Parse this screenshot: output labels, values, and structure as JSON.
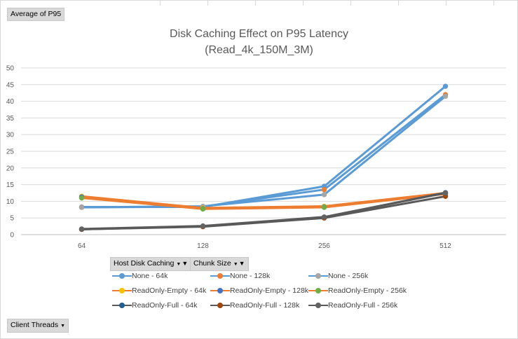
{
  "header": {
    "value_field": "Average of P95"
  },
  "pivot_buttons": {
    "legend_fields": [
      "Host Disk Caching",
      "Chunk Size"
    ],
    "axis_field": "Client Threads"
  },
  "chart_data": {
    "type": "line",
    "title": "Disk Caching Effect on P95 Latency",
    "subtitle": "(Read_4k_150M_3M)",
    "xlabel": "",
    "ylabel": "",
    "categories": [
      "64",
      "128",
      "256",
      "512"
    ],
    "ylim": [
      0,
      50
    ],
    "yticks": [
      0,
      5,
      10,
      15,
      20,
      25,
      30,
      35,
      40,
      45,
      50
    ],
    "grid": true,
    "legend_position": "bottom",
    "series": [
      {
        "name": "None - 64k",
        "color": "#5b9bd5",
        "values": [
          8.3,
          8.3,
          14.5,
          44.5
        ]
      },
      {
        "name": "None - 128k",
        "color": "#5b9bd5",
        "values": [
          8.2,
          8.4,
          13.5,
          42.0
        ]
      },
      {
        "name": "None - 256k",
        "color": "#5b9bd5",
        "values": [
          8.2,
          8.5,
          12.0,
          41.5
        ]
      },
      {
        "name": "ReadOnly-Empty - 64k",
        "color": "#ed7d31",
        "values": [
          11.5,
          8.0,
          8.5,
          12.5
        ]
      },
      {
        "name": "ReadOnly-Empty - 128k",
        "color": "#ed7d31",
        "values": [
          11.3,
          7.8,
          8.3,
          12.3
        ]
      },
      {
        "name": "ReadOnly-Empty - 256k",
        "color": "#ed7d31",
        "values": [
          11.0,
          7.7,
          8.2,
          12.2
        ]
      },
      {
        "name": "ReadOnly-Full - 64k",
        "color": "#595959",
        "values": [
          1.6,
          2.5,
          5.2,
          12.6
        ]
      },
      {
        "name": "ReadOnly-Full - 128k",
        "color": "#595959",
        "values": [
          1.6,
          2.4,
          5.0,
          11.5
        ]
      },
      {
        "name": "ReadOnly-Full - 256k",
        "color": "#595959",
        "values": [
          1.7,
          2.6,
          5.3,
          12.5
        ]
      }
    ],
    "marker_colors": [
      "#5b9bd5",
      "#ed7d31",
      "#a5a5a5",
      "#ffc000",
      "#4472c4",
      "#70ad47",
      "#255e91",
      "#9e480e",
      "#636363"
    ]
  }
}
